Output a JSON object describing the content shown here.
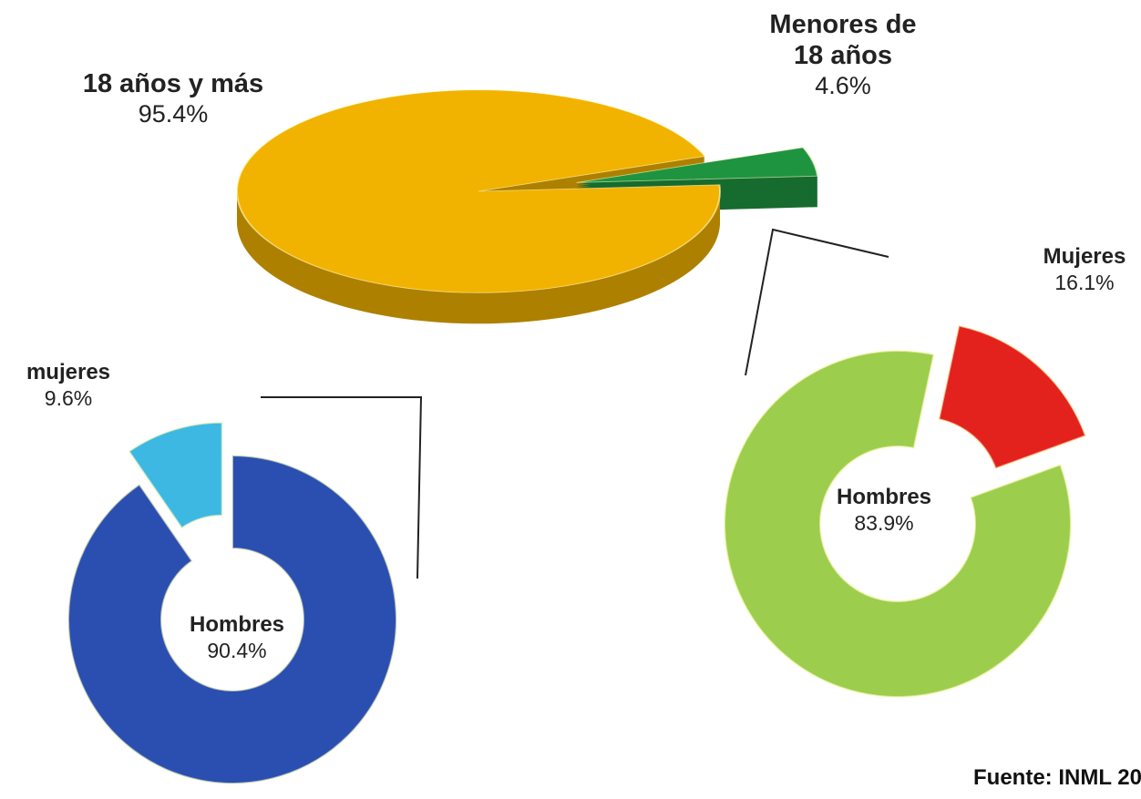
{
  "chart_data": [
    {
      "type": "pie",
      "categories": [
        "18 años y más",
        "Menores de 18 años"
      ],
      "values": [
        95.4,
        4.6
      ],
      "value_labels": [
        "95.4%",
        "4.6%"
      ],
      "colors": [
        "#f2b200",
        "#1f9440"
      ]
    },
    {
      "type": "donut",
      "categories": [
        "Hombres",
        "mujeres"
      ],
      "values": [
        90.4,
        9.6
      ],
      "value_labels": [
        "90.4%",
        "9.6%"
      ],
      "colors": [
        "#2a4fb0",
        "#3db8e2"
      ]
    },
    {
      "type": "donut",
      "categories": [
        "Hombres",
        "Mujeres"
      ],
      "values": [
        83.9,
        16.1
      ],
      "value_labels": [
        "83.9%",
        "16.1%"
      ],
      "colors": [
        "#9ccd4c",
        "#e3211d"
      ]
    }
  ],
  "source": "Fuente: INML 20"
}
